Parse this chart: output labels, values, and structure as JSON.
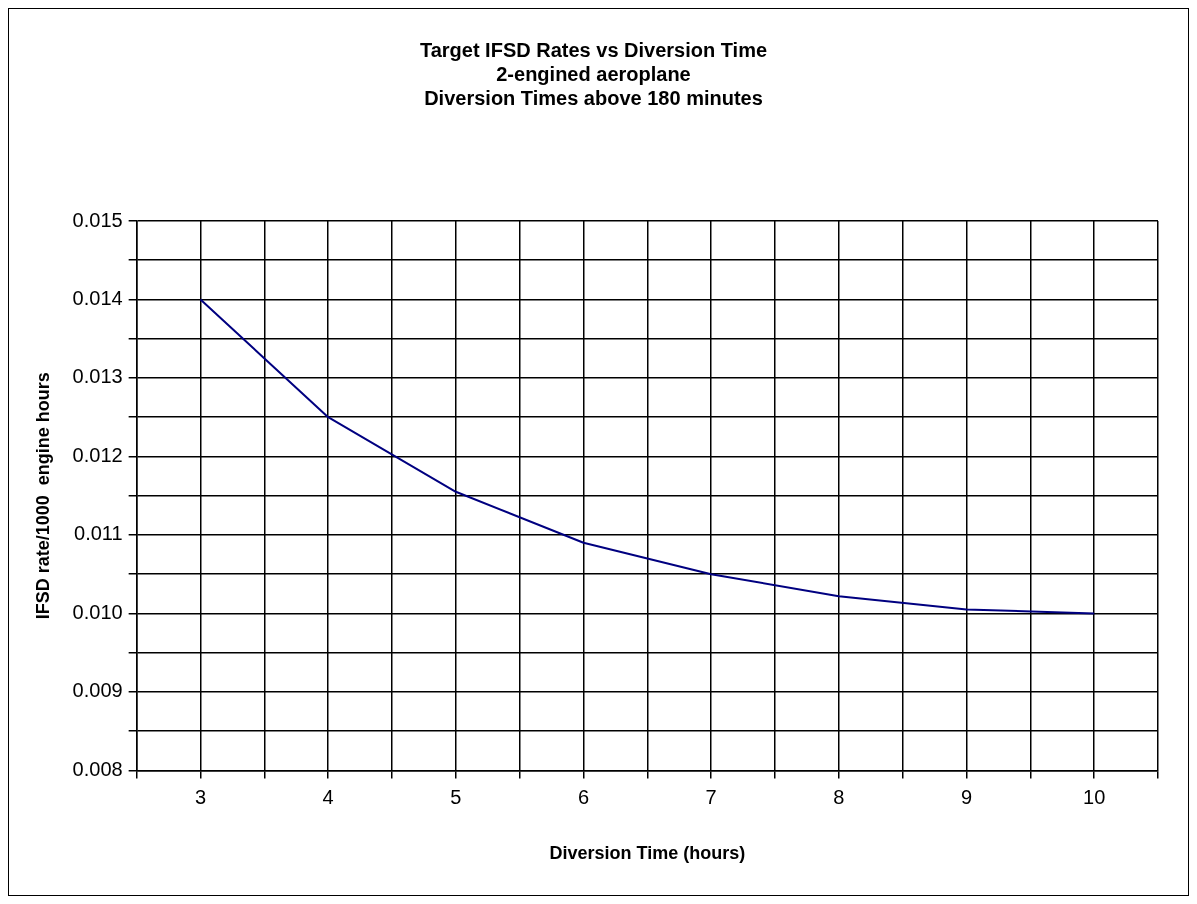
{
  "chart_data": {
    "type": "line",
    "title": [
      "Target IFSD Rates vs Diversion Time",
      "2-engined aeroplane",
      "Diversion Times above 180 minutes"
    ],
    "xlabel": "Diversion Time (hours)",
    "ylabel": "IFSD rate/1000  engine hours",
    "x": [
      3,
      4,
      5,
      6,
      7,
      8,
      9,
      10
    ],
    "series": [
      {
        "color": "#000080",
        "values": [
          0.014,
          0.0125,
          0.01155,
          0.0109,
          0.0105,
          0.01022,
          0.01005,
          0.01
        ]
      }
    ],
    "xlim": [
      2.5,
      10.5
    ],
    "xticks": [
      {
        "value": 2.5,
        "label": null
      },
      3,
      {
        "value": 3.5,
        "label": null
      },
      4,
      {
        "value": 4.5,
        "label": null
      },
      5,
      {
        "value": 5.5,
        "label": null
      },
      6,
      {
        "value": 6.5,
        "label": null
      },
      7,
      {
        "value": 7.5,
        "label": null
      },
      8,
      {
        "value": 8.5,
        "label": null
      },
      9,
      {
        "value": 9.5,
        "label": null
      },
      10,
      {
        "value": 10.5,
        "label": null
      }
    ],
    "ylim": [
      0.008,
      0.015
    ],
    "yticks": [
      {
        "value": 0.008,
        "label": "0.008"
      },
      {
        "value": 0.0085,
        "label": null
      },
      {
        "value": 0.009,
        "label": "0.009"
      },
      {
        "value": 0.0095,
        "label": null
      },
      {
        "value": 0.01,
        "label": "0.010"
      },
      {
        "value": 0.0105,
        "label": null
      },
      {
        "value": 0.011,
        "label": "0.011"
      },
      {
        "value": 0.0115,
        "label": null
      },
      {
        "value": 0.012,
        "label": "0.012"
      },
      {
        "value": 0.0125,
        "label": null
      },
      {
        "value": 0.013,
        "label": "0.013"
      },
      {
        "value": 0.0135,
        "label": null
      },
      {
        "value": 0.014,
        "label": "0.014"
      },
      {
        "value": 0.0145,
        "label": null
      },
      {
        "value": 0.015,
        "label": "0.015"
      }
    ],
    "grid": true,
    "legend": false,
    "marker": "none",
    "line_style": "solid"
  }
}
